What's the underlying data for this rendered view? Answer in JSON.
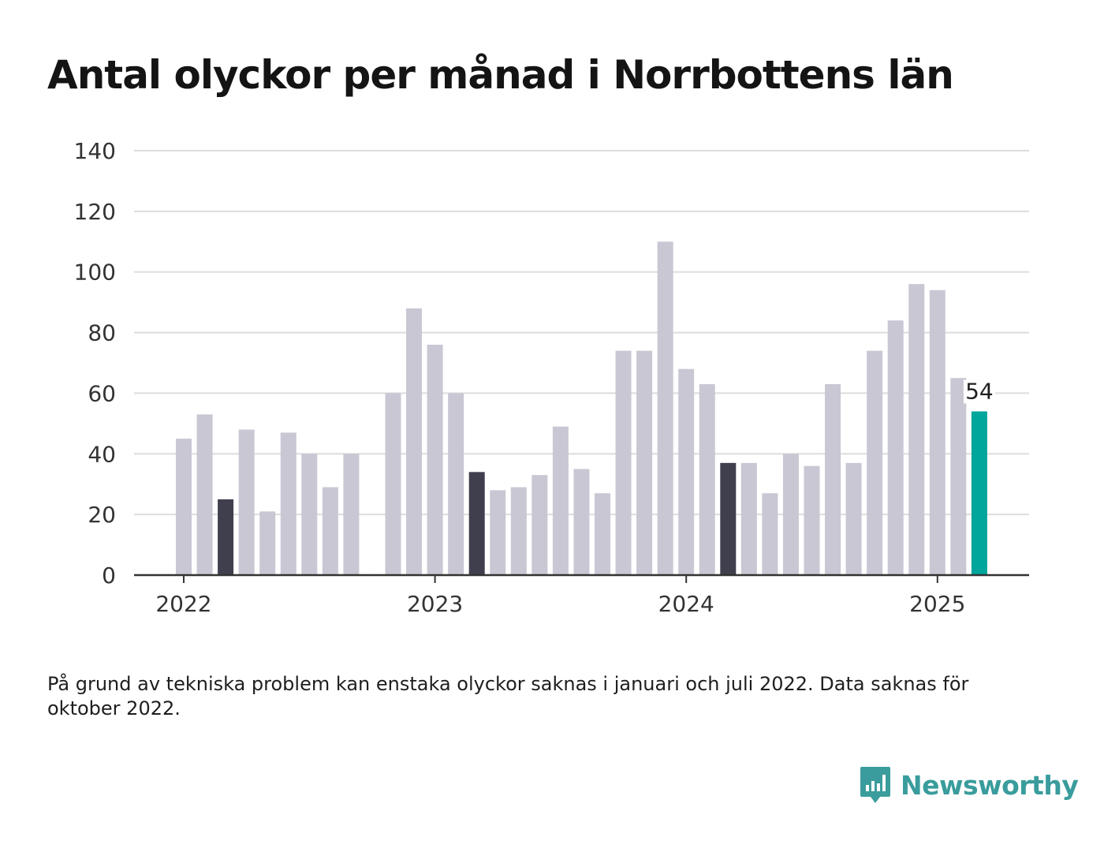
{
  "title": "Antal olyckor per månad i Norrbottens län",
  "note": "På grund av tekniska problem kan enstaka olyckor saknas i januari och juli 2022. Data saknas för oktober 2022.",
  "brand": {
    "name": "Newsworthy",
    "icon": "bar-chart-speech-bubble-icon",
    "color": "#3a9c9c"
  },
  "colors": {
    "bar": "#c8c7d3",
    "highlight": "#403f4d",
    "latest": "#00a59b",
    "grid": "#dddddd",
    "axis": "#333333"
  },
  "chart_data": {
    "type": "bar",
    "title": "Antal olyckor per månad i Norrbottens län",
    "xlabel": "",
    "ylabel": "",
    "ylim": [
      0,
      140
    ],
    "y_ticks": [
      0,
      20,
      40,
      60,
      80,
      100,
      120,
      140
    ],
    "x_ticks": [
      "2022",
      "2023",
      "2024",
      "2025"
    ],
    "grid": true,
    "series": [
      {
        "categories": [
          "2022-01",
          "2022-02",
          "2022-03",
          "2022-04",
          "2022-05",
          "2022-06",
          "2022-07",
          "2022-08",
          "2022-09",
          "2022-10",
          "2022-11",
          "2022-12",
          "2023-01",
          "2023-02",
          "2023-03",
          "2023-04",
          "2023-05",
          "2023-06",
          "2023-07",
          "2023-08",
          "2023-09",
          "2023-10",
          "2023-11",
          "2023-12",
          "2024-01",
          "2024-02",
          "2024-03",
          "2024-04",
          "2024-05",
          "2024-06",
          "2024-07",
          "2024-08",
          "2024-09",
          "2024-10",
          "2024-11",
          "2024-12",
          "2025-01",
          "2025-02",
          "2025-03"
        ],
        "values": [
          45,
          53,
          25,
          48,
          21,
          47,
          40,
          29,
          40,
          null,
          60,
          88,
          76,
          60,
          34,
          28,
          29,
          33,
          49,
          35,
          27,
          74,
          74,
          110,
          68,
          63,
          37,
          37,
          27,
          40,
          36,
          63,
          37,
          74,
          84,
          96,
          94,
          65,
          54
        ],
        "highlighted": [
          "2022-03",
          "2023-03",
          "2024-03"
        ],
        "latest": "2025-03"
      }
    ],
    "annotations": [
      {
        "category": "2025-03",
        "text": "54"
      }
    ]
  }
}
